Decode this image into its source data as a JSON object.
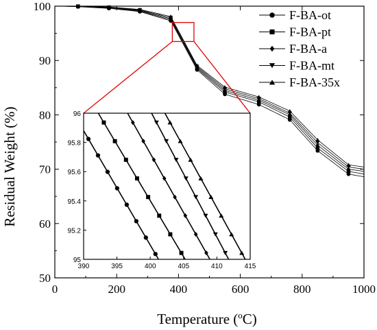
{
  "chart_data": [
    {
      "type": "line",
      "xlabel": "Temperature (",
      "xlabel_sup": "o",
      "xlabel_tail": "C)",
      "ylabel": "Residual Weight (%)",
      "xlim": [
        0,
        1000
      ],
      "ylim": [
        50,
        100
      ],
      "x_ticks": [
        0,
        200,
        400,
        600,
        800,
        1000
      ],
      "y_ticks": [
        50,
        60,
        70,
        80,
        90,
        100
      ],
      "legend_position": "top-right",
      "zoom_box": {
        "x": [
          380,
          450
        ],
        "y": [
          93.5,
          97
        ],
        "color": "#e00000"
      },
      "series": [
        {
          "name": "F-BA-ot",
          "marker": "circle",
          "x": [
            20,
            75,
            175,
            275,
            375,
            460,
            550,
            660,
            760,
            850,
            950,
            1000
          ],
          "y": [
            100,
            99.9,
            99.6,
            99.0,
            97.3,
            88.3,
            83.8,
            81.9,
            79.1,
            73.4,
            69.1,
            68.6
          ]
        },
        {
          "name": "F-BA-pt",
          "marker": "square",
          "x": [
            20,
            75,
            175,
            275,
            375,
            460,
            550,
            660,
            760,
            850,
            950,
            1000
          ],
          "y": [
            100,
            99.95,
            99.7,
            99.1,
            97.5,
            88.5,
            84.2,
            82.4,
            79.6,
            73.9,
            69.6,
            69.1
          ]
        },
        {
          "name": "F-BA-a",
          "marker": "diamond",
          "x": [
            20,
            75,
            175,
            275,
            375,
            460,
            550,
            660,
            760,
            850,
            950,
            1000
          ],
          "y": [
            100,
            99.95,
            99.75,
            99.2,
            97.7,
            88.7,
            84.5,
            82.7,
            80.0,
            74.4,
            70.0,
            69.6
          ]
        },
        {
          "name": "F-BA-mt",
          "marker": "triangle-down",
          "x": [
            20,
            75,
            175,
            275,
            375,
            460,
            550,
            660,
            760,
            850,
            950,
            1000
          ],
          "y": [
            100,
            100,
            99.8,
            99.3,
            97.9,
            88.9,
            84.8,
            83.0,
            80.3,
            74.9,
            70.4,
            70.0
          ]
        },
        {
          "name": "F-BA-35x",
          "marker": "triangle-up",
          "x": [
            20,
            75,
            175,
            275,
            375,
            460,
            550,
            660,
            760,
            850,
            950,
            1000
          ],
          "y": [
            100,
            100,
            99.85,
            99.4,
            98.1,
            89.1,
            85.1,
            83.3,
            80.7,
            75.4,
            70.8,
            70.4
          ]
        }
      ]
    },
    {
      "type": "line",
      "inset": true,
      "xlim": [
        390,
        415
      ],
      "ylim": [
        95,
        96
      ],
      "x_ticks": [
        390,
        395,
        400,
        405,
        410,
        415
      ],
      "y_ticks": [
        95,
        95.2,
        95.4,
        95.6,
        95.8,
        96
      ],
      "y_tick_labels": [
        "95",
        "95.2",
        "95.4",
        "95.6",
        "95.8",
        "96"
      ],
      "series": [
        {
          "name": "F-BA-ot",
          "marker": "circle",
          "x": [
            390,
            401.5
          ],
          "y": [
            95.88,
            94.98
          ]
        },
        {
          "name": "F-BA-pt",
          "marker": "square",
          "x": [
            392.2,
            405.5
          ],
          "y": [
            96.0,
            94.98
          ]
        },
        {
          "name": "F-BA-a",
          "marker": "diamond",
          "x": [
            396.6,
            409.2
          ],
          "y": [
            96.0,
            94.98
          ]
        },
        {
          "name": "F-BA-mt",
          "marker": "triangle-down",
          "x": [
            400.2,
            412.0
          ],
          "y": [
            96.0,
            94.98
          ]
        },
        {
          "name": "F-BA-35x",
          "marker": "triangle-up",
          "x": [
            402.2,
            414.5
          ],
          "y": [
            96.0,
            94.98
          ]
        }
      ]
    }
  ]
}
